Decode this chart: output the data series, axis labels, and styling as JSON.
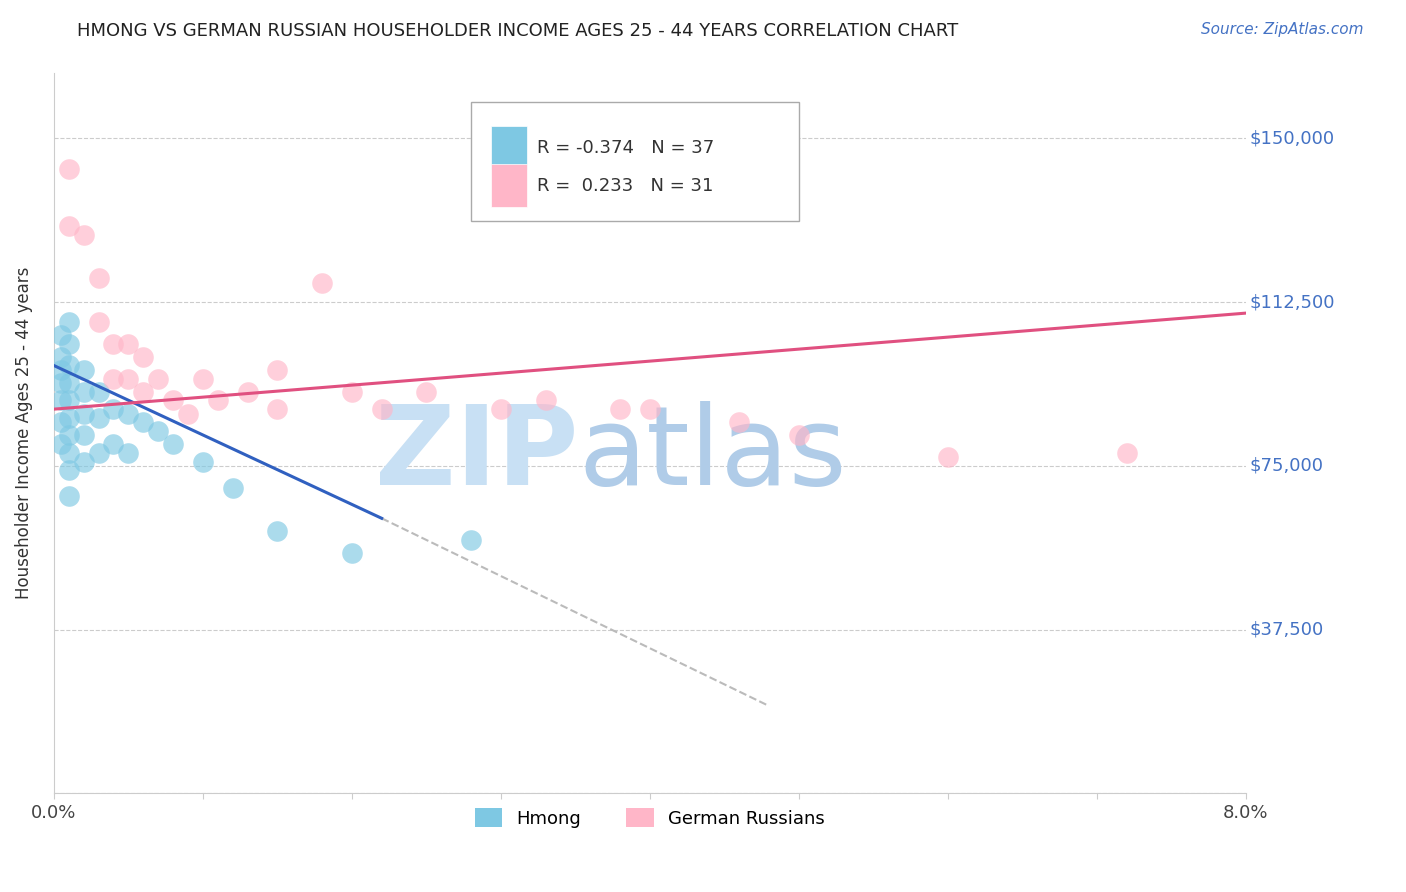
{
  "title": "HMONG VS GERMAN RUSSIAN HOUSEHOLDER INCOME AGES 25 - 44 YEARS CORRELATION CHART",
  "source": "Source: ZipAtlas.com",
  "ylabel": "Householder Income Ages 25 - 44 years",
  "xmin": 0.0,
  "xmax": 0.08,
  "ymin": 0,
  "ymax": 165000,
  "yticks": [
    0,
    37500,
    75000,
    112500,
    150000
  ],
  "ytick_labels": [
    "",
    "$37,500",
    "$75,000",
    "$112,500",
    "$150,000"
  ],
  "xticks": [
    0.0,
    0.01,
    0.02,
    0.03,
    0.04,
    0.05,
    0.06,
    0.07,
    0.08
  ],
  "hmong_color": "#7ec8e3",
  "german_color": "#ffb6c8",
  "hmong_line_color": "#3060c0",
  "german_line_color": "#e05080",
  "R_hmong": -0.374,
  "N_hmong": 37,
  "R_german": 0.233,
  "N_german": 31,
  "hmong_x": [
    0.0005,
    0.0005,
    0.0005,
    0.0005,
    0.0005,
    0.0005,
    0.0005,
    0.001,
    0.001,
    0.001,
    0.001,
    0.001,
    0.001,
    0.001,
    0.001,
    0.001,
    0.001,
    0.002,
    0.002,
    0.002,
    0.002,
    0.002,
    0.003,
    0.003,
    0.003,
    0.004,
    0.004,
    0.005,
    0.005,
    0.006,
    0.007,
    0.008,
    0.01,
    0.012,
    0.015,
    0.02,
    0.028
  ],
  "hmong_y": [
    105000,
    100000,
    97000,
    94000,
    90000,
    85000,
    80000,
    108000,
    103000,
    98000,
    94000,
    90000,
    86000,
    82000,
    78000,
    74000,
    68000,
    97000,
    92000,
    87000,
    82000,
    76000,
    92000,
    86000,
    78000,
    88000,
    80000,
    87000,
    78000,
    85000,
    83000,
    80000,
    76000,
    70000,
    60000,
    55000,
    58000
  ],
  "german_x": [
    0.001,
    0.001,
    0.002,
    0.003,
    0.003,
    0.004,
    0.004,
    0.005,
    0.005,
    0.006,
    0.006,
    0.007,
    0.008,
    0.009,
    0.01,
    0.011,
    0.013,
    0.015,
    0.015,
    0.018,
    0.02,
    0.022,
    0.025,
    0.03,
    0.033,
    0.038,
    0.04,
    0.046,
    0.05,
    0.06,
    0.072
  ],
  "german_y": [
    143000,
    130000,
    128000,
    118000,
    108000,
    103000,
    95000,
    103000,
    95000,
    100000,
    92000,
    95000,
    90000,
    87000,
    95000,
    90000,
    92000,
    88000,
    97000,
    117000,
    92000,
    88000,
    92000,
    88000,
    90000,
    88000,
    88000,
    85000,
    82000,
    77000,
    78000
  ],
  "hmong_line_x0": 0.0,
  "hmong_line_x1": 0.022,
  "hmong_line_y0": 98000,
  "hmong_line_y1": 63000,
  "german_line_x0": 0.0,
  "german_line_x1": 0.08,
  "german_line_y0": 88000,
  "german_line_y1": 110000,
  "dash_line_x0": 0.022,
  "dash_line_x1": 0.048,
  "dash_line_y0": 63000,
  "dash_line_y1": 20000,
  "background_color": "#ffffff",
  "grid_color": "#cccccc"
}
